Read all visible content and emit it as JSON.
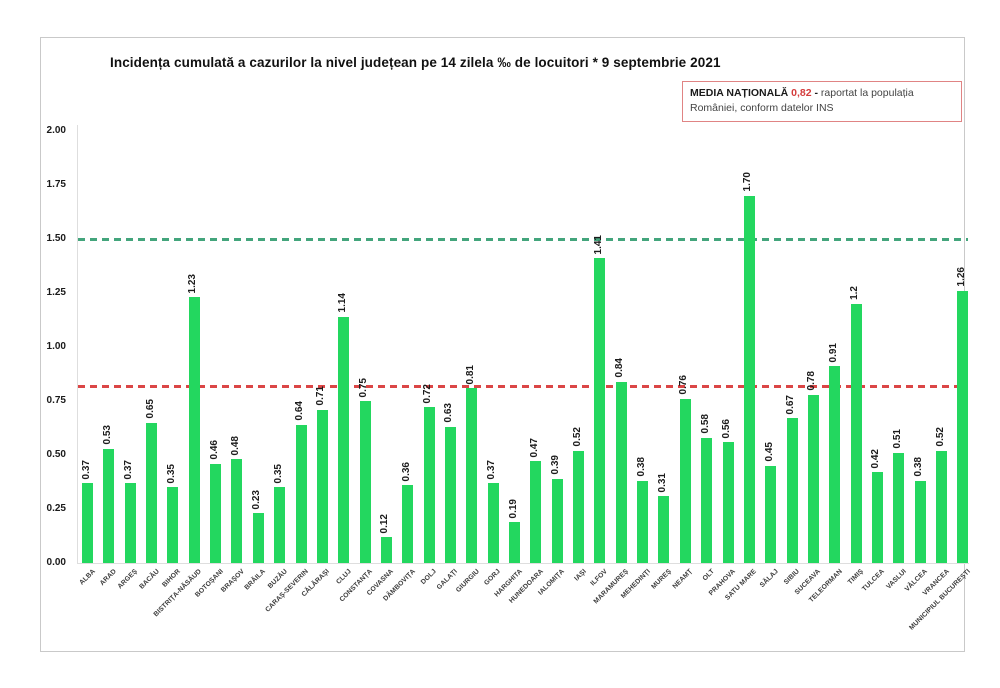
{
  "title": "Incidența cumulată a cazurilor la nivel județean pe 14 zilela ‰ de locuitori * 9 septembrie 2021",
  "legend": {
    "label": "MEDIA NAȚIONALĂ",
    "value": "0,82",
    "dash": "-",
    "note": "raportat la populația României, conform datelor INS",
    "value_color": "#d43c3c",
    "border_color": "#e08484"
  },
  "chart_data": {
    "type": "bar",
    "title": "Incidența cumulată a cazurilor la nivel județean pe 14 zilela ‰ de locuitori * 9 septembrie 2021",
    "xlabel": "",
    "ylabel": "",
    "ylim": [
      0,
      2.0
    ],
    "yticks": [
      "0.00",
      "0.25",
      "0.50",
      "0.75",
      "1.00",
      "1.25",
      "1.50",
      "1.75",
      "2.00"
    ],
    "grid": false,
    "legend_position": "top-right",
    "bar_color": "#23d75f",
    "categories": [
      "ALBA",
      "ARAD",
      "ARGEȘ",
      "BACĂU",
      "BIHOR",
      "BISTRIȚA-NĂSĂUD",
      "BOTOȘANI",
      "BRAȘOV",
      "BRĂILA",
      "BUZĂU",
      "CARAȘ-SEVERIN",
      "CĂLĂRAȘI",
      "CLUJ",
      "CONSTANȚA",
      "COVASNA",
      "DÂMBOVIȚA",
      "DOLJ",
      "GALAȚI",
      "GIURGIU",
      "GORJ",
      "HARGHITA",
      "HUNEDOARA",
      "IALOMIȚA",
      "IAȘI",
      "ILFOV",
      "MARAMUREȘ",
      "MEHEDINȚI",
      "MUREȘ",
      "NEAMȚ",
      "OLT",
      "PRAHOVA",
      "SATU MARE",
      "SĂLAJ",
      "SIBIU",
      "SUCEAVA",
      "TELEORMAN",
      "TIMIȘ",
      "TULCEA",
      "VASLUI",
      "VÂLCEA",
      "VRANCEA",
      "MUNICIPIUL BUCUREȘTI"
    ],
    "values": [
      0.37,
      0.53,
      0.37,
      0.65,
      0.35,
      1.23,
      0.46,
      0.48,
      0.23,
      0.35,
      0.64,
      0.71,
      1.14,
      0.75,
      0.12,
      0.36,
      0.72,
      0.63,
      0.81,
      0.37,
      0.19,
      0.47,
      0.39,
      0.52,
      1.41,
      0.84,
      0.38,
      0.31,
      0.76,
      0.58,
      0.56,
      1.7,
      0.45,
      0.67,
      0.78,
      0.91,
      1.2,
      0.42,
      0.51,
      0.38,
      0.52,
      1.26
    ],
    "value_labels": [
      "0.37",
      "0.53",
      "0.37",
      "0.65",
      "0.35",
      "1.23",
      "0.46",
      "0.48",
      "0.23",
      "0.35",
      "0.64",
      "0.71",
      "1.14",
      "0.75",
      "0.12",
      "0.36",
      "0.72",
      "0.63",
      "0.81",
      "0.37",
      "0.19",
      "0.47",
      "0.39",
      "0.52",
      "1.41",
      "0.84",
      "0.38",
      "0.31",
      "0.76",
      "0.58",
      "0.56",
      "1.70",
      "0.45",
      "0.67",
      "0.78",
      "0.91",
      "1.2",
      "0.42",
      "0.51",
      "0.38",
      "0.52",
      "1.26"
    ],
    "reference_lines": [
      {
        "name": "upper-threshold",
        "value": 1.5,
        "color": "#43a57c",
        "style": "dashed"
      },
      {
        "name": "media-nationala",
        "value": 0.82,
        "color": "#db4646",
        "style": "dashed"
      }
    ]
  }
}
